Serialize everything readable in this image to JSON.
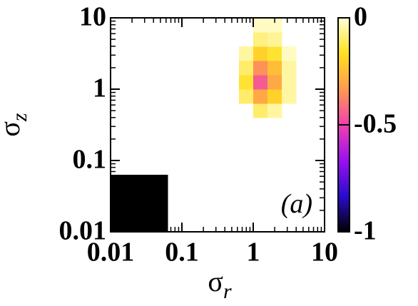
{
  "chart_data": {
    "type": "heatmap",
    "xlabel": "σ",
    "xlabel_sub": "r",
    "ylabel": "σ",
    "ylabel_sub": "z",
    "annotation": "(a)",
    "log_x": true,
    "log_y": true,
    "x": [
      0.0126,
      0.02,
      0.0316,
      0.0501,
      0.0794,
      0.126,
      0.2,
      0.316,
      0.501,
      0.794,
      1.26,
      2,
      3.16,
      5.01,
      7.94
    ],
    "y": [
      0.0126,
      0.02,
      0.0316,
      0.0501,
      0.0794,
      0.126,
      0.2,
      0.316,
      0.501,
      0.794,
      1.26,
      2,
      3.16,
      5.01,
      7.94
    ],
    "values": [
      [
        -1,
        -1,
        -1,
        -1,
        null,
        null,
        null,
        null,
        null,
        null,
        null,
        null,
        null,
        null,
        null
      ],
      [
        -1,
        -1,
        -1,
        -1,
        null,
        null,
        null,
        null,
        null,
        null,
        null,
        null,
        null,
        null,
        null
      ],
      [
        -1,
        -1,
        -1,
        -1,
        null,
        null,
        null,
        null,
        null,
        null,
        null,
        null,
        null,
        null,
        null
      ],
      [
        -1,
        -1,
        -1,
        -1,
        null,
        null,
        null,
        null,
        null,
        null,
        null,
        null,
        null,
        null,
        null
      ],
      [
        null,
        null,
        null,
        null,
        null,
        null,
        null,
        null,
        null,
        null,
        null,
        null,
        null,
        null,
        null
      ],
      [
        null,
        null,
        null,
        null,
        null,
        null,
        null,
        null,
        null,
        null,
        null,
        null,
        null,
        null,
        null
      ],
      [
        null,
        null,
        null,
        null,
        null,
        null,
        null,
        null,
        null,
        null,
        null,
        null,
        null,
        null,
        null
      ],
      [
        null,
        null,
        null,
        null,
        null,
        null,
        null,
        null,
        null,
        null,
        null,
        null,
        null,
        null,
        null
      ],
      [
        null,
        null,
        null,
        null,
        null,
        null,
        null,
        null,
        null,
        null,
        -0.1,
        -0.05,
        null,
        null,
        null
      ],
      [
        null,
        null,
        null,
        null,
        null,
        null,
        null,
        null,
        null,
        -0.1,
        -0.3,
        -0.2,
        -0.05,
        null,
        null
      ],
      [
        null,
        null,
        null,
        null,
        null,
        null,
        null,
        null,
        null,
        -0.15,
        -0.45,
        -0.3,
        -0.05,
        null,
        null
      ],
      [
        null,
        null,
        null,
        null,
        null,
        null,
        null,
        null,
        null,
        -0.1,
        -0.35,
        -0.25,
        -0.05,
        null,
        null
      ],
      [
        null,
        null,
        null,
        null,
        null,
        null,
        null,
        null,
        null,
        -0.05,
        -0.2,
        -0.15,
        -0.02,
        null,
        null
      ],
      [
        null,
        null,
        null,
        null,
        null,
        null,
        null,
        null,
        null,
        null,
        -0.08,
        -0.06,
        null,
        null,
        null
      ],
      [
        null,
        null,
        null,
        null,
        null,
        null,
        null,
        null,
        null,
        null,
        -0.02,
        -0.02,
        null,
        null,
        null
      ]
    ],
    "xlim": [
      0.01,
      10
    ],
    "ylim": [
      0.01,
      10
    ],
    "xticks": [
      0.01,
      0.1,
      1,
      10
    ],
    "yticks": [
      0.01,
      0.1,
      1,
      10
    ],
    "colorbar": {
      "lim": [
        -1,
        0
      ],
      "ticks": [
        0,
        -0.5,
        -1
      ],
      "colormap": [
        "#000000",
        "#2a0bd0",
        "#9a10f0",
        "#f040b0",
        "#ff9a50",
        "#ffe020",
        "#ffffd8"
      ]
    }
  }
}
